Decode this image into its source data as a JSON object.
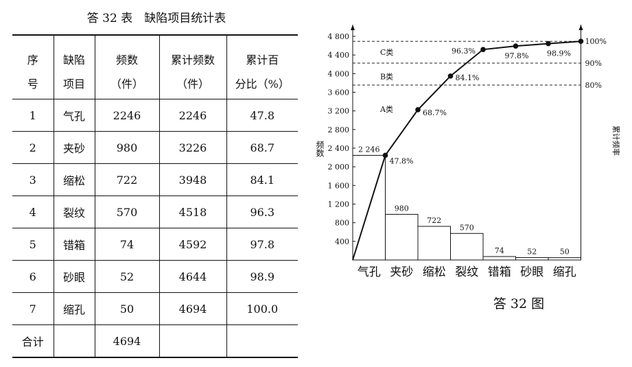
{
  "table": {
    "caption": "答 32 表　缺陷项目统计表",
    "headers": [
      [
        "序",
        "缺陷",
        "频数",
        "累计频数",
        "累计百"
      ],
      [
        "号",
        "项目",
        "（件）",
        "（件）",
        "分比（%）"
      ]
    ],
    "rows": [
      [
        "1",
        "气孔",
        "2246",
        "2246",
        "47.8"
      ],
      [
        "2",
        "夹砂",
        "980",
        "3226",
        "68.7"
      ],
      [
        "3",
        "缩松",
        "722",
        "3948",
        "84.1"
      ],
      [
        "4",
        "裂纹",
        "570",
        "4518",
        "96.3"
      ],
      [
        "5",
        "错箱",
        "74",
        "4592",
        "97.8"
      ],
      [
        "6",
        "砂眼",
        "52",
        "4644",
        "98.9"
      ],
      [
        "7",
        "缩孔",
        "50",
        "4694",
        "100.0"
      ],
      [
        "合计",
        "",
        "4694",
        "",
        ""
      ]
    ]
  },
  "chart_data": {
    "type": "bar",
    "title": "答 32 图",
    "ylabel": "频数",
    "y2label": "累计频率",
    "categories": [
      "气孔",
      "夹砂",
      "缩松",
      "裂纹",
      "错箱",
      "砂眼",
      "缩孔"
    ],
    "values": [
      2246,
      980,
      722,
      570,
      74,
      52,
      50
    ],
    "value_labels": [
      "2 246",
      "980",
      "722",
      "570",
      "74",
      "52",
      "50"
    ],
    "cumulative": {
      "counts": [
        2246,
        3226,
        3948,
        4518,
        4592,
        4644,
        4694
      ],
      "percent_labels": [
        "47.8%",
        "68.7%",
        "84.1%",
        "96.3%",
        "97.8%",
        "98.9%",
        "100%"
      ]
    },
    "ylim": [
      0,
      4800
    ],
    "yticks": [
      400,
      800,
      1200,
      1600,
      2000,
      2400,
      2800,
      3200,
      3600,
      4000,
      4400,
      4800
    ],
    "ytick_labels": [
      "400",
      "800",
      "1 200",
      "1 600",
      "2 000",
      "2 400",
      "2 800",
      "3 200",
      "3 600",
      "4 000",
      "4 400",
      "4 800"
    ],
    "reference_lines": [
      {
        "label": "100%",
        "value": 4694
      },
      {
        "label": "90%",
        "value": 4225
      },
      {
        "label": "80%",
        "value": 3755
      }
    ],
    "zone_labels": [
      {
        "label": "C类",
        "value": 4460
      },
      {
        "label": "B类",
        "value": 3940
      },
      {
        "label": "A类",
        "value": 3240
      }
    ],
    "grid": false
  }
}
